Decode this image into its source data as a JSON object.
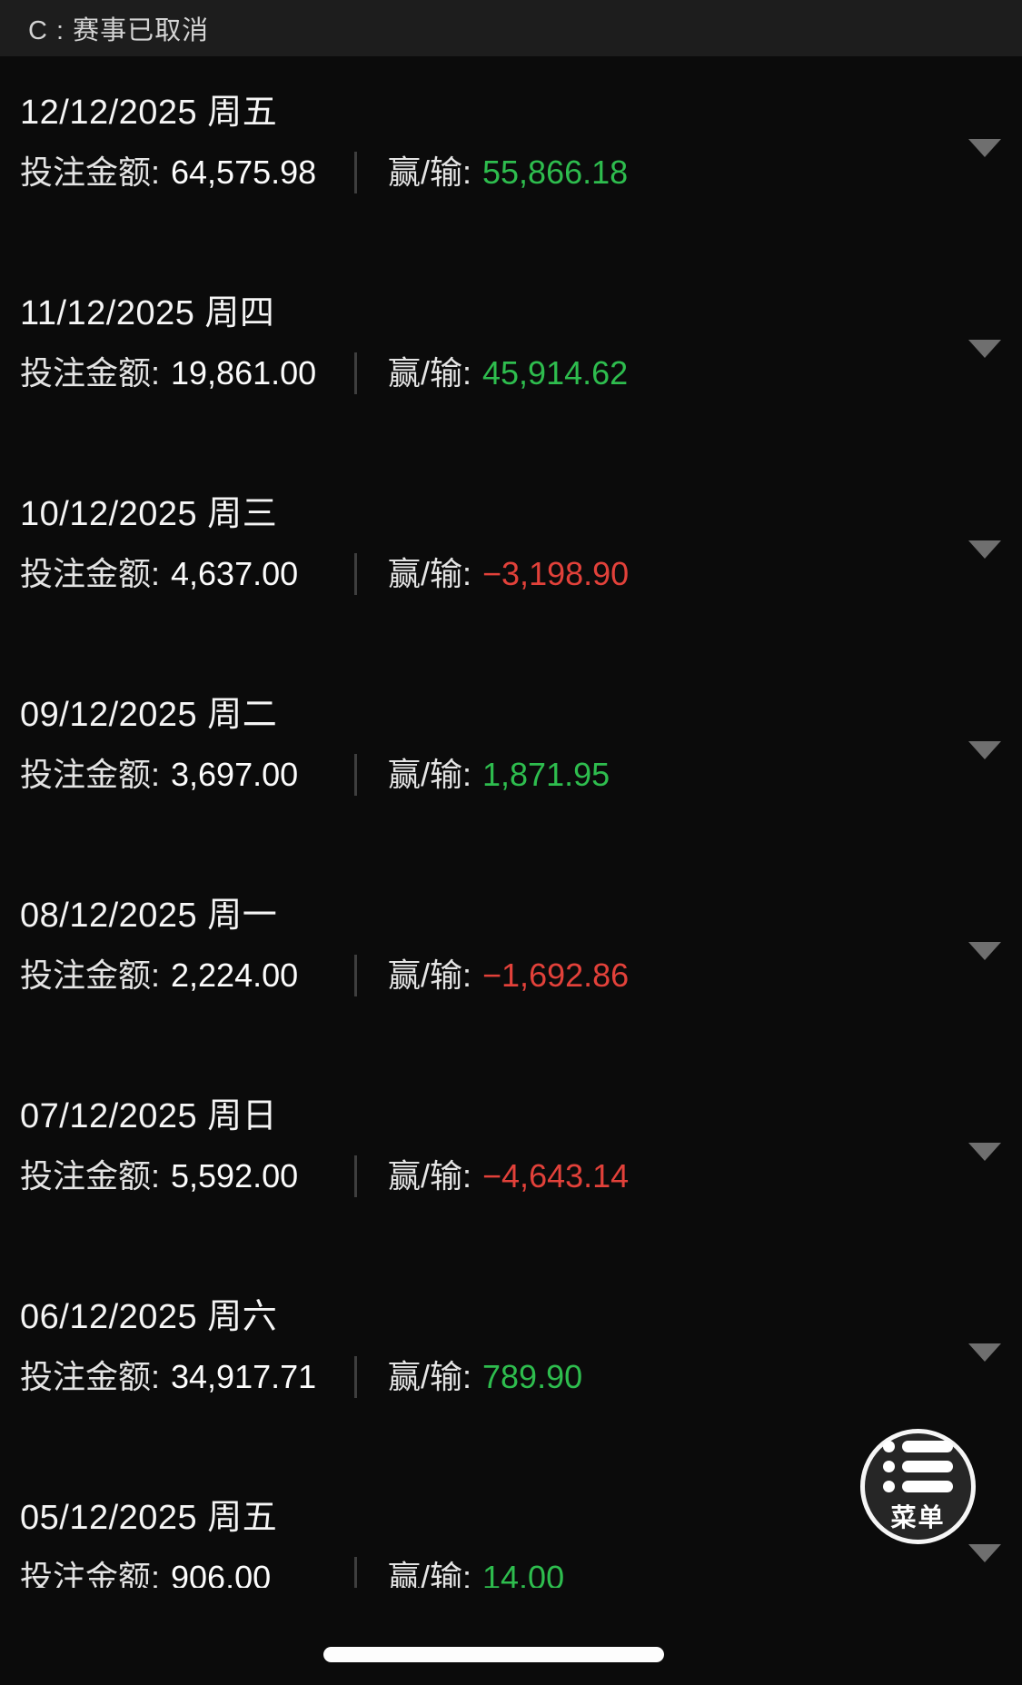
{
  "header": {
    "title": "C : 赛事已取消"
  },
  "labels": {
    "bet_amount": "投注金额:",
    "win_loss": "赢/输:"
  },
  "colors": {
    "win": "#2ebd4e",
    "loss": "#e2413a"
  },
  "days": [
    {
      "date": "12/12/2025 周五",
      "bet_amount": "64,575.98",
      "win_loss": "55,866.18",
      "result": "win"
    },
    {
      "date": "11/12/2025 周四",
      "bet_amount": "19,861.00",
      "win_loss": "45,914.62",
      "result": "win"
    },
    {
      "date": "10/12/2025 周三",
      "bet_amount": "4,637.00",
      "win_loss": "−3,198.90",
      "result": "loss"
    },
    {
      "date": "09/12/2025 周二",
      "bet_amount": "3,697.00",
      "win_loss": "1,871.95",
      "result": "win"
    },
    {
      "date": "08/12/2025 周一",
      "bet_amount": "2,224.00",
      "win_loss": "−1,692.86",
      "result": "loss"
    },
    {
      "date": "07/12/2025 周日",
      "bet_amount": "5,592.00",
      "win_loss": "−4,643.14",
      "result": "loss"
    },
    {
      "date": "06/12/2025 周六",
      "bet_amount": "34,917.71",
      "win_loss": "789.90",
      "result": "win"
    },
    {
      "date": "05/12/2025 周五",
      "bet_amount": "906.00",
      "win_loss": "14.00",
      "result": "win"
    }
  ],
  "menu_button": {
    "label": "菜单",
    "icon": "list-menu-icon"
  }
}
